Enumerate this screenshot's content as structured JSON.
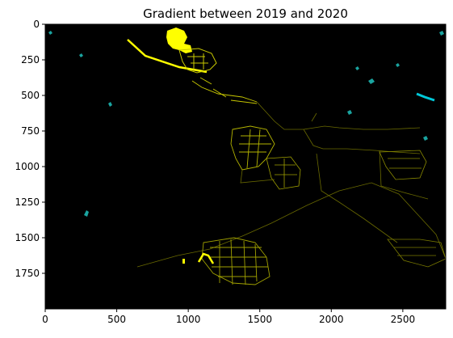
{
  "figure": {
    "title": "Gradient between 2019 and 2020"
  },
  "image": {
    "background_color": "#000000",
    "highlight_colors": [
      "#ffff00",
      "#c8c800",
      "#00c8c8"
    ],
    "legend": "none"
  },
  "axes": {
    "x": {
      "range": [
        0,
        2800
      ],
      "ticks": [
        0,
        500,
        1000,
        1500,
        2000,
        2500
      ],
      "tick_labels": [
        "0",
        "500",
        "1000",
        "1500",
        "2000",
        "2500"
      ]
    },
    "y": {
      "range": [
        0,
        2000
      ],
      "inverted": true,
      "ticks": [
        0,
        250,
        500,
        750,
        1000,
        1250,
        1500,
        1750
      ],
      "tick_labels": [
        "0",
        "250",
        "500",
        "750",
        "1000",
        "1250",
        "1500",
        "1750"
      ]
    }
  }
}
